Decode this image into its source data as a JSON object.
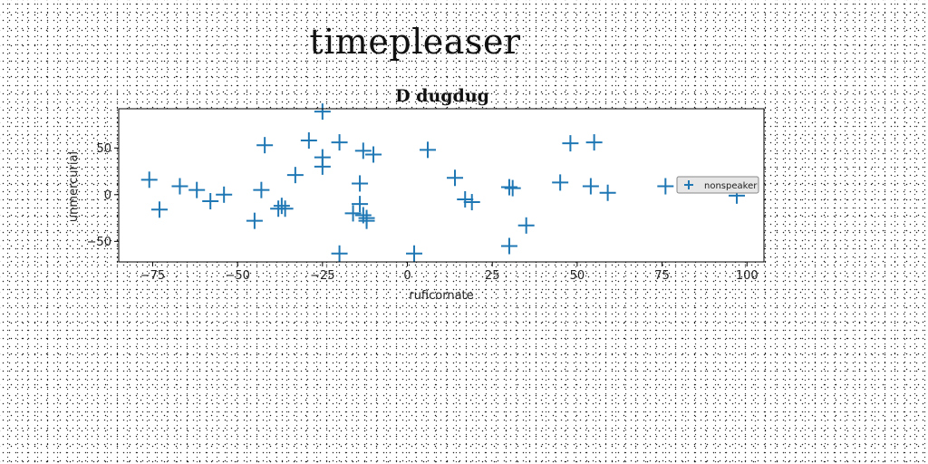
{
  "page": {
    "title": "timepleaser"
  },
  "chart_data": {
    "type": "scatter",
    "title": "D dugdug",
    "xlabel": "ruficornate",
    "ylabel": "unmercurial",
    "xlim": [
      -85,
      105
    ],
    "ylim": [
      -72,
      92
    ],
    "xticks": [
      -75,
      -50,
      -25,
      0,
      25,
      50,
      75,
      100
    ],
    "yticks": [
      -50,
      0,
      50
    ],
    "grid": false,
    "legend_position": "right",
    "marker": "+",
    "color": "#1f77b4",
    "series": [
      {
        "name": "nonspeaker",
        "points": [
          [
            -76,
            16
          ],
          [
            -73,
            -16
          ],
          [
            -67,
            9
          ],
          [
            -62,
            5
          ],
          [
            -58,
            -7
          ],
          [
            -54,
            0
          ],
          [
            -45,
            -28
          ],
          [
            -43,
            5
          ],
          [
            -42,
            53
          ],
          [
            -38,
            -15
          ],
          [
            -37,
            -12
          ],
          [
            -36,
            -15
          ],
          [
            -33,
            21
          ],
          [
            -29,
            58
          ],
          [
            -25,
            30
          ],
          [
            -25,
            40
          ],
          [
            -25,
            89
          ],
          [
            -20,
            56
          ],
          [
            -20,
            -63
          ],
          [
            -16,
            -20
          ],
          [
            -14,
            12
          ],
          [
            -14,
            -10
          ],
          [
            -13,
            -22
          ],
          [
            -13,
            47
          ],
          [
            -12,
            -25
          ],
          [
            -12,
            -28
          ],
          [
            -10,
            43
          ],
          [
            2,
            -63
          ],
          [
            6,
            48
          ],
          [
            14,
            18
          ],
          [
            17,
            -5
          ],
          [
            19,
            -8
          ],
          [
            30,
            8
          ],
          [
            31,
            7
          ],
          [
            30,
            -55
          ],
          [
            35,
            -33
          ],
          [
            45,
            13
          ],
          [
            48,
            55
          ],
          [
            54,
            9
          ],
          [
            55,
            56
          ],
          [
            59,
            2
          ],
          [
            76,
            9
          ],
          [
            97,
            -1
          ]
        ]
      }
    ]
  }
}
